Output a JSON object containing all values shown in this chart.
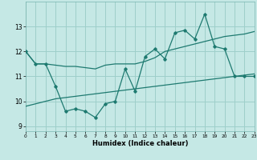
{
  "xlabel": "Humidex (Indice chaleur)",
  "bg_color": "#c5e8e5",
  "grid_color": "#9ecfca",
  "line_color": "#1e7a70",
  "x_data": [
    0,
    1,
    2,
    3,
    4,
    5,
    6,
    7,
    8,
    9,
    10,
    11,
    12,
    13,
    14,
    15,
    16,
    17,
    18,
    19,
    20,
    21,
    22,
    23
  ],
  "y_main": [
    12.0,
    11.5,
    11.5,
    10.6,
    9.6,
    9.7,
    9.6,
    9.35,
    9.9,
    10.0,
    11.3,
    10.4,
    11.8,
    12.1,
    11.7,
    12.75,
    12.85,
    12.5,
    13.5,
    12.2,
    12.1,
    11.0,
    11.0,
    11.0
  ],
  "y_upper": [
    12.0,
    11.5,
    11.5,
    11.45,
    11.4,
    11.4,
    11.35,
    11.3,
    11.45,
    11.5,
    11.5,
    11.5,
    11.6,
    11.75,
    12.0,
    12.1,
    12.2,
    12.3,
    12.4,
    12.5,
    12.6,
    12.65,
    12.7,
    12.8
  ],
  "y_lower": [
    9.8,
    9.9,
    10.0,
    10.1,
    10.15,
    10.2,
    10.25,
    10.3,
    10.35,
    10.4,
    10.45,
    10.5,
    10.55,
    10.6,
    10.65,
    10.7,
    10.75,
    10.8,
    10.85,
    10.9,
    10.95,
    11.0,
    11.05,
    11.1
  ],
  "xlim": [
    0,
    23
  ],
  "ylim": [
    8.8,
    14.0
  ],
  "yticks": [
    9,
    10,
    11,
    12,
    13
  ],
  "xticks": [
    0,
    1,
    2,
    3,
    4,
    5,
    6,
    7,
    8,
    9,
    10,
    11,
    12,
    13,
    14,
    15,
    16,
    17,
    18,
    19,
    20,
    21,
    22,
    23
  ]
}
